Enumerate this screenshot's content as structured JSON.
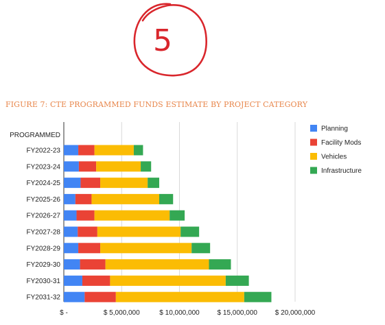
{
  "figure_title": "FIGURE 7: CTE PROGRAMMED FUNDS ESTIMATE BY PROJECT CATEGORY",
  "annotation_text": "5",
  "chart_data": {
    "type": "bar",
    "orientation": "horizontal",
    "stacked": true,
    "title": "FIGURE 7: CTE PROGRAMMED FUNDS ESTIMATE BY PROJECT CATEGORY",
    "header_label": "PROGRAMMED",
    "categories": [
      "FY2022-23",
      "FY2023-24",
      "FY2024-25",
      "FY2025-26",
      "FY2026-27",
      "FY2027-28",
      "FY2028-29",
      "FY2029-30",
      "FY2030-31",
      "FY2031-32"
    ],
    "series": [
      {
        "name": "Planning",
        "color": "#4285f4",
        "values": [
          1250000,
          1300000,
          1450000,
          1000000,
          1100000,
          1200000,
          1250000,
          1400000,
          1600000,
          1800000
        ]
      },
      {
        "name": "Facility Mods",
        "color": "#ea4335",
        "values": [
          1400000,
          1500000,
          1700000,
          1400000,
          1550000,
          1700000,
          1900000,
          2200000,
          2400000,
          2700000
        ]
      },
      {
        "name": "Vehicles",
        "color": "#fbbc04",
        "values": [
          3400000,
          3850000,
          4100000,
          5850000,
          6500000,
          7200000,
          7900000,
          8950000,
          10000000,
          11100000
        ]
      },
      {
        "name": "Infrastructure",
        "color": "#34a853",
        "values": [
          800000,
          900000,
          1000000,
          1200000,
          1300000,
          1600000,
          1600000,
          1900000,
          2000000,
          2350000
        ]
      }
    ],
    "x_axis": {
      "min": 0,
      "max": 20000000,
      "ticks": [
        0,
        5000000,
        10000000,
        15000000,
        20000000
      ],
      "tick_labels": [
        "$ -",
        "$ 5,000,000",
        "$ 10,000,000",
        "$ 15,000,000",
        "$ 20,000,000"
      ]
    },
    "grid": true,
    "legend_position": "right",
    "xlabel": "",
    "ylabel": ""
  }
}
